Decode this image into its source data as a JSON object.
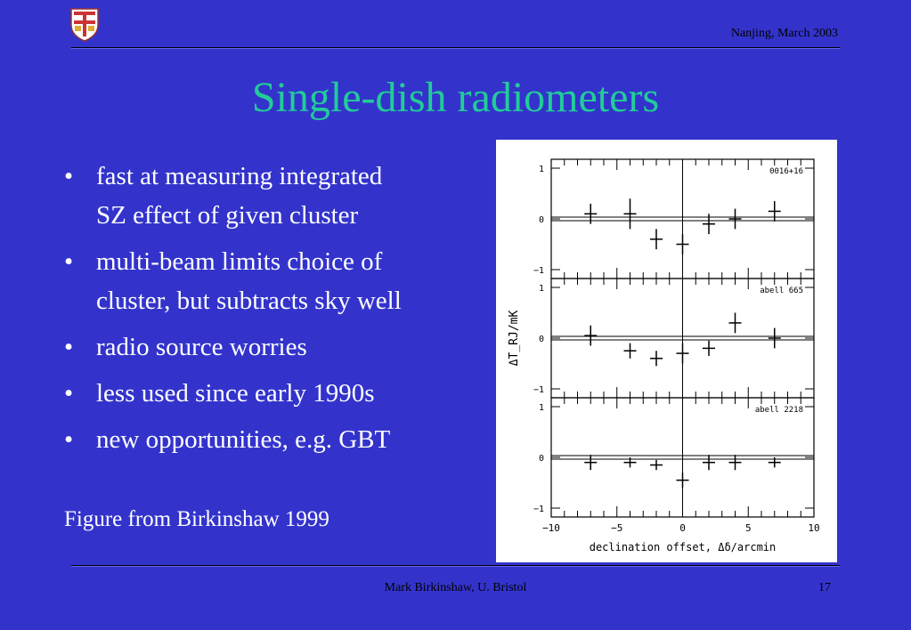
{
  "header": {
    "location_date": "Nanjing, March 2003"
  },
  "title": "Single-dish radiometers",
  "bullets": [
    [
      "fast at measuring integrated",
      "SZ effect of given cluster"
    ],
    [
      "multi-beam limits choice of",
      "cluster, but subtracts sky well"
    ],
    [
      "radio source worries"
    ],
    [
      "less used since early 1990s"
    ],
    [
      "new opportunities, e.g. GBT"
    ]
  ],
  "bullet_char": "•",
  "caption": "Figure from Birkinshaw 1999",
  "footer": {
    "author": "Mark Birkinshaw, U. Bristol",
    "page": "17"
  },
  "colors": {
    "background": "#3333cc",
    "title": "#22cc99",
    "text": "#ffffff"
  },
  "chart_data": {
    "type": "scatter",
    "xlabel": "declination offset, Δδ/arcmin",
    "ylabel": "ΔT_RJ/mK",
    "xlim": [
      -10,
      10
    ],
    "ylim": [
      -1,
      1
    ],
    "x_ticks": [
      "−10",
      "−5",
      "0",
      "5",
      "10"
    ],
    "y_ticks": [
      "1",
      "0",
      "−1"
    ],
    "panels": [
      {
        "name": "0016+16",
        "points": [
          {
            "x": -7,
            "y": 0.1,
            "err": 0.2
          },
          {
            "x": -4,
            "y": 0.1,
            "err": 0.3
          },
          {
            "x": -2,
            "y": -0.4,
            "err": 0.2
          },
          {
            "x": 0,
            "y": -0.5,
            "err": 0.2
          },
          {
            "x": 2,
            "y": -0.1,
            "err": 0.2
          },
          {
            "x": 4,
            "y": 0.0,
            "err": 0.2
          },
          {
            "x": 7,
            "y": 0.15,
            "err": 0.2
          }
        ]
      },
      {
        "name": "abell 665",
        "points": [
          {
            "x": -7,
            "y": 0.05,
            "err": 0.2
          },
          {
            "x": -4,
            "y": -0.25,
            "err": 0.15
          },
          {
            "x": -2,
            "y": -0.4,
            "err": 0.15
          },
          {
            "x": 0,
            "y": -0.3,
            "err": 0.2
          },
          {
            "x": 2,
            "y": -0.2,
            "err": 0.15
          },
          {
            "x": 4,
            "y": 0.3,
            "err": 0.2
          },
          {
            "x": 7,
            "y": 0.0,
            "err": 0.2
          }
        ]
      },
      {
        "name": "abell 2218",
        "points": [
          {
            "x": -7,
            "y": -0.1,
            "err": 0.15
          },
          {
            "x": -4,
            "y": -0.1,
            "err": 0.1
          },
          {
            "x": -2,
            "y": -0.15,
            "err": 0.1
          },
          {
            "x": 0,
            "y": -0.45,
            "err": 0.15
          },
          {
            "x": 2,
            "y": -0.1,
            "err": 0.15
          },
          {
            "x": 4,
            "y": -0.1,
            "err": 0.15
          },
          {
            "x": 7,
            "y": -0.1,
            "err": 0.1
          }
        ]
      }
    ]
  }
}
